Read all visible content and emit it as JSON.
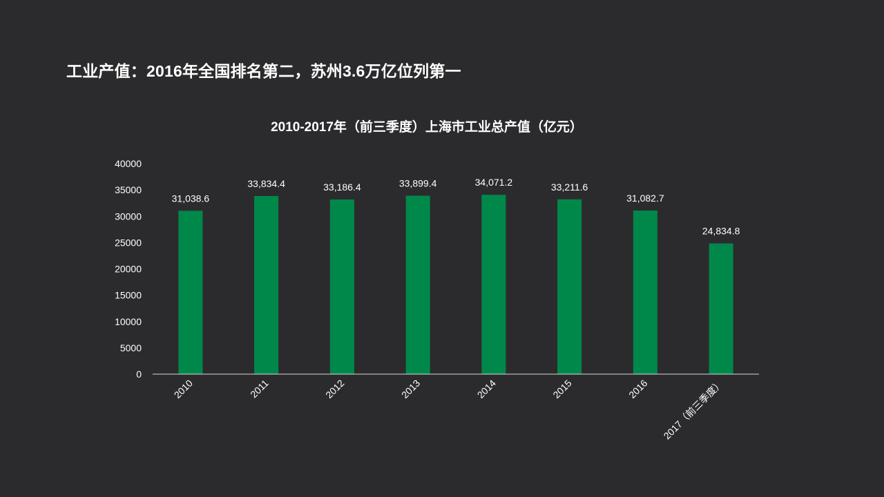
{
  "slide": {
    "title": "工业产值：2016年全国排名第二，苏州3.6万亿位列第一"
  },
  "colors": {
    "background": "#2b2b2d",
    "bar": "#00884a",
    "text": "#ffffff",
    "axis": "#d9d9d9"
  },
  "chart_data": {
    "type": "bar",
    "title": "2010-2017年（前三季度）上海市工业总产值（亿元）",
    "xlabel": "",
    "ylabel": "",
    "categories": [
      "2010",
      "2011",
      "2012",
      "2013",
      "2014",
      "2015",
      "2016",
      "2017（前三季度）"
    ],
    "values": [
      31038.6,
      33834.4,
      33186.4,
      33899.4,
      34071.2,
      33211.6,
      31082.7,
      24834.8
    ],
    "value_labels": [
      "31,038.6",
      "33,834.4",
      "33,186.4",
      "33,899.4",
      "34,071.2",
      "33,211.6",
      "31,082.7",
      "24,834.8"
    ],
    "ylim": [
      0,
      40000
    ],
    "yticks": [
      "0",
      "5000",
      "10000",
      "15000",
      "20000",
      "25000",
      "30000",
      "35000",
      "40000"
    ],
    "grid": false,
    "legend": "none"
  }
}
